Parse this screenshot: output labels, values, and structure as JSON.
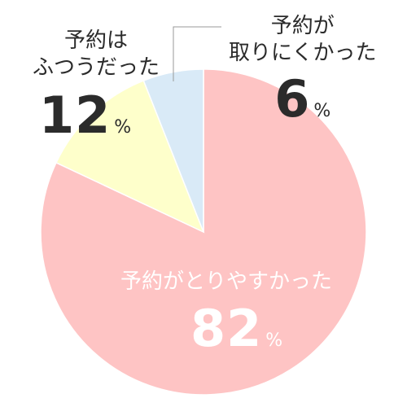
{
  "chart_data": {
    "type": "pie",
    "title": "",
    "unit": "%",
    "slices": [
      {
        "label": "予約がとりやすかった",
        "value": 82,
        "color": "#fec4c4"
      },
      {
        "label_lines": [
          "予約は",
          "ふつうだった"
        ],
        "value": 12,
        "color": "#feffcb"
      },
      {
        "label_lines": [
          "予約が",
          "取りにくかった"
        ],
        "value": 6,
        "color": "#d9eaf7"
      }
    ]
  }
}
